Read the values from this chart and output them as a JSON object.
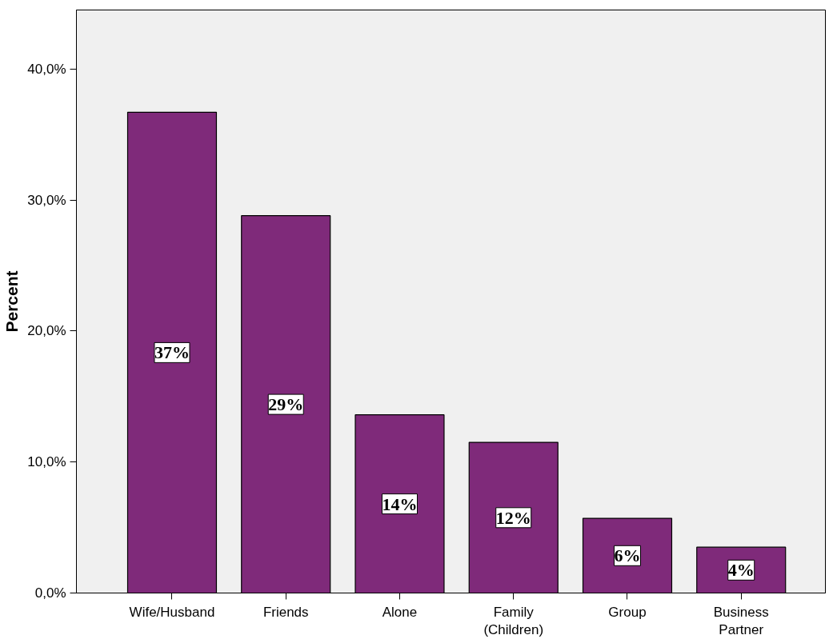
{
  "chart_data": {
    "type": "bar",
    "ylabel": "Percent",
    "categories": [
      "Wife/Husband",
      "Friends",
      "Alone",
      "Family\n(Children)",
      "Group",
      "Business\nPartner"
    ],
    "values": [
      36.7,
      28.8,
      13.6,
      11.5,
      5.7,
      3.5
    ],
    "value_labels": [
      "37%",
      "29%",
      "14%",
      "12%",
      "6%",
      "4%"
    ],
    "color": "#7f2a7a",
    "ylim": [
      0,
      44.5
    ],
    "yticks": [
      {
        "value": 0,
        "label": "0,0%"
      },
      {
        "value": 10,
        "label": "10,0%"
      },
      {
        "value": 20,
        "label": "20,0%"
      },
      {
        "value": 30,
        "label": "30,0%"
      },
      {
        "value": 40,
        "label": "40,0%"
      }
    ],
    "grid": false
  }
}
